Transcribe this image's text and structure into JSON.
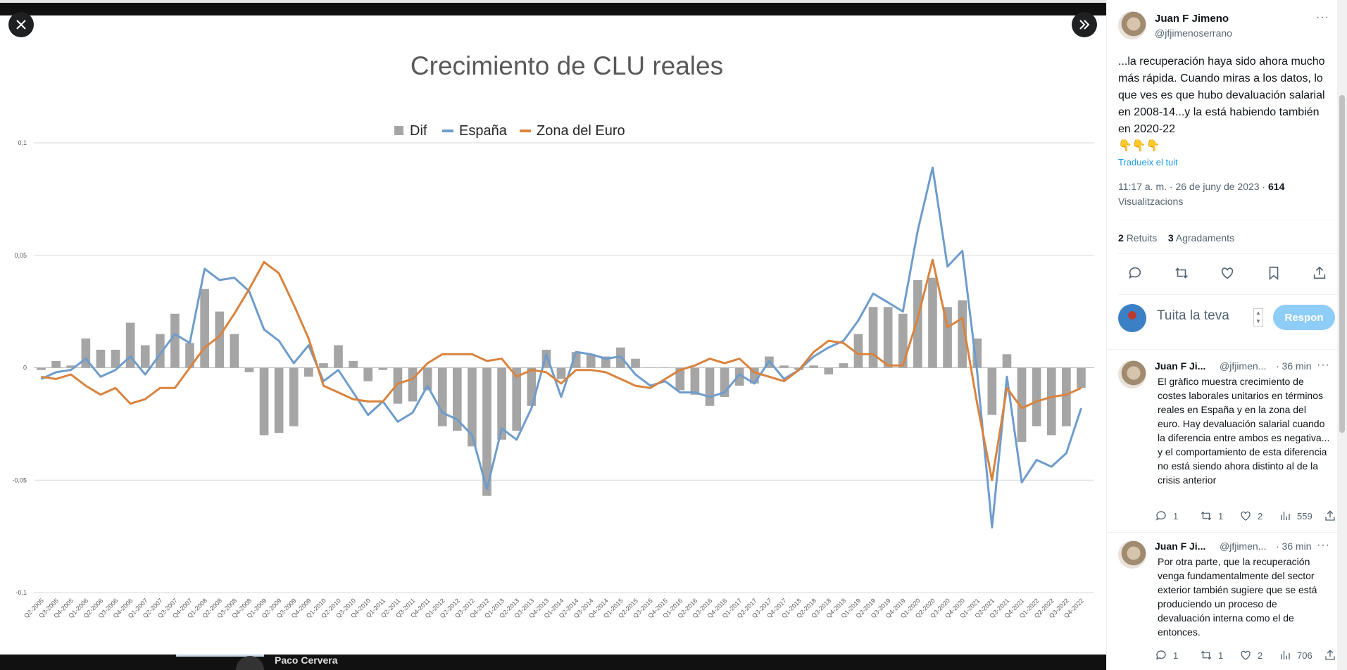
{
  "viewer": {
    "close_icon": "close-icon",
    "expand_icon": "chevron-double-right-icon",
    "bottom_partial_name": "Paco Cervera"
  },
  "chart_data": {
    "type": "bar+line",
    "title": "Crecimiento de CLU reales",
    "legend": [
      "Dif",
      "España",
      "Zona del Euro"
    ],
    "legend_position": "top",
    "grid": true,
    "ylim": [
      -0.1,
      0.1
    ],
    "y_ticks": [
      "0,1",
      "0,05",
      "0",
      "-0,05",
      "-0,1"
    ],
    "colors": {
      "Dif": "#a5a5a5",
      "España": "#6e9ccc",
      "Zona del Euro": "#d9833e"
    },
    "categories": [
      "Q2-2005",
      "Q3-2005",
      "Q4-2005",
      "Q1-2006",
      "Q2-2006",
      "Q3-2006",
      "Q4-2006",
      "Q1-2007",
      "Q2-2007",
      "Q3-2007",
      "Q4-2007",
      "Q1-2008",
      "Q2-2008",
      "Q3-2008",
      "Q4-2008",
      "Q1-2009",
      "Q2-2009",
      "Q3-2009",
      "Q4-2009",
      "Q1-2010",
      "Q2-2010",
      "Q3-2010",
      "Q4-2010",
      "Q1-2011",
      "Q2-2011",
      "Q3-2011",
      "Q4-2011",
      "Q1-2012",
      "Q2-2012",
      "Q3-2012",
      "Q4-2012",
      "Q1-2013",
      "Q2-2013",
      "Q3-2013",
      "Q4-2013",
      "Q1-2014",
      "Q2-2014",
      "Q3-2014",
      "Q4-2014",
      "Q1-2015",
      "Q2-2015",
      "Q3-2015",
      "Q4-2015",
      "Q1-2016",
      "Q2-2016",
      "Q3-2016",
      "Q4-2016",
      "Q1-2017",
      "Q2-2017",
      "Q3-2017",
      "Q4-2017",
      "Q1-2018",
      "Q2-2018",
      "Q3-2018",
      "Q4-2018",
      "Q1-2019",
      "Q2-2019",
      "Q3-2019",
      "Q4-2019",
      "Q1-2020",
      "Q2-2020",
      "Q3-2020",
      "Q4-2020",
      "Q1-2021",
      "Q2-2021",
      "Q3-2021",
      "Q4-2021",
      "Q1-2022",
      "Q2-2022",
      "Q3-2022",
      "Q4-2022"
    ],
    "series": [
      {
        "name": "Dif",
        "type": "bar",
        "values": [
          -0.001,
          0.003,
          0.001,
          0.013,
          0.008,
          0.008,
          0.02,
          0.01,
          0.015,
          0.024,
          0.011,
          0.035,
          0.025,
          0.015,
          -0.002,
          -0.03,
          -0.029,
          -0.026,
          -0.004,
          0.002,
          0.01,
          0.003,
          -0.006,
          -0.001,
          -0.016,
          -0.015,
          -0.01,
          -0.026,
          -0.028,
          -0.035,
          -0.057,
          -0.032,
          -0.028,
          -0.017,
          0.008,
          -0.005,
          0.007,
          0.006,
          0.005,
          0.009,
          0.004,
          0,
          0,
          -0.01,
          -0.012,
          -0.017,
          -0.013,
          -0.008,
          -0.007,
          0.005,
          0.001,
          -0.001,
          0.001,
          -0.003,
          0.002,
          0.015,
          0.027,
          0.027,
          0.024,
          0.039,
          0.04,
          0.027,
          0.03,
          0.013,
          -0.021,
          0.006,
          -0.033,
          -0.026,
          -0.03,
          -0.026,
          -0.009
        ]
      },
      {
        "name": "España",
        "type": "line",
        "values": [
          -0.005,
          -0.002,
          -0.001,
          0.004,
          -0.004,
          -0.001,
          0.005,
          -0.003,
          0.006,
          0.015,
          0.011,
          0.044,
          0.039,
          0.04,
          0.034,
          0.017,
          0.012,
          0.002,
          0.01,
          -0.006,
          -0.001,
          -0.011,
          -0.021,
          -0.015,
          -0.024,
          -0.02,
          -0.008,
          -0.02,
          -0.023,
          -0.03,
          -0.054,
          -0.027,
          -0.032,
          -0.018,
          0.006,
          -0.013,
          0.007,
          0.006,
          0.004,
          0.005,
          -0.003,
          -0.008,
          -0.006,
          -0.011,
          -0.011,
          -0.013,
          -0.011,
          -0.003,
          -0.007,
          0.003,
          -0.005,
          -0.001,
          0.005,
          0.009,
          0.012,
          0.021,
          0.033,
          0.029,
          0.025,
          0.061,
          0.089,
          0.045,
          0.052,
          -0.002,
          -0.071,
          -0.004,
          -0.051,
          -0.041,
          -0.044,
          -0.038,
          -0.018
        ]
      },
      {
        "name": "Zona del Euro",
        "type": "line",
        "values": [
          -0.004,
          -0.005,
          -0.003,
          -0.008,
          -0.012,
          -0.009,
          -0.016,
          -0.014,
          -0.009,
          -0.009,
          0.0,
          0.009,
          0.014,
          0.024,
          0.035,
          0.047,
          0.042,
          0.028,
          0.013,
          -0.008,
          -0.011,
          -0.014,
          -0.015,
          -0.015,
          -0.007,
          -0.005,
          0.002,
          0.006,
          0.006,
          0.006,
          0.003,
          0.004,
          -0.004,
          -0.001,
          -0.002,
          -0.007,
          -0.001,
          -0.001,
          -0.002,
          -0.005,
          -0.008,
          -0.009,
          -0.005,
          -0.001,
          0.001,
          0.004,
          0.002,
          0.004,
          -0.002,
          -0.004,
          -0.006,
          -0.001,
          0.007,
          0.012,
          0.011,
          0.006,
          0.006,
          0.001,
          0.001,
          0.022,
          0.048,
          0.018,
          0.022,
          -0.016,
          -0.05,
          -0.009,
          -0.018,
          -0.015,
          -0.013,
          -0.012,
          -0.009
        ]
      }
    ]
  },
  "tweet": {
    "author_name": "Juan F Jimeno",
    "author_handle": "@jfjimenoserrano",
    "more_icon": "more-icon",
    "text": "...la recuperación haya sido ahora mucho más rápida. Cuando miras a los datos, lo que ves es que hubo devaluación salarial en 2008-14...y la está habiendo también en 2020-22",
    "emoji": "👇👇👇",
    "translate_label": "Tradueix el tuit",
    "time": "11:17 a. m. · 26 de juny de 2023 · ",
    "views_count": "614",
    "views_label": "Visualitzacions",
    "retweets_count": "2",
    "retweets_label": "Retuits",
    "likes_count": "3",
    "likes_label": "Agradaments"
  },
  "reply_box": {
    "placeholder": "Tuita la teva",
    "button_label": "Respon"
  },
  "replies": [
    {
      "author_name": "Juan F Ji...",
      "handle": "@jfjimen...",
      "time": "· 36 min",
      "text": "El gràfico muestra crecimiento de costes laborales unitarios en términos reales en España y en la zona del euro. Hay devaluación salarial cuando la diferencia entre ambos es negativa... y el comportamiento de esta diferencia no está siendo ahora distinto al de la crisis anterior",
      "replies": "1",
      "retweets": "1",
      "likes": "2",
      "views": "559"
    },
    {
      "author_name": "Juan F Ji...",
      "handle": "@jfjimen...",
      "time": "· 36 min",
      "text": "Por otra parte, que la recuperación venga fundamentalmente del sector exterior también sugiere que se está produciendo un proceso de devaluación interna como el de entonces.",
      "replies": "1",
      "retweets": "1",
      "likes": "2",
      "views": "706"
    }
  ]
}
